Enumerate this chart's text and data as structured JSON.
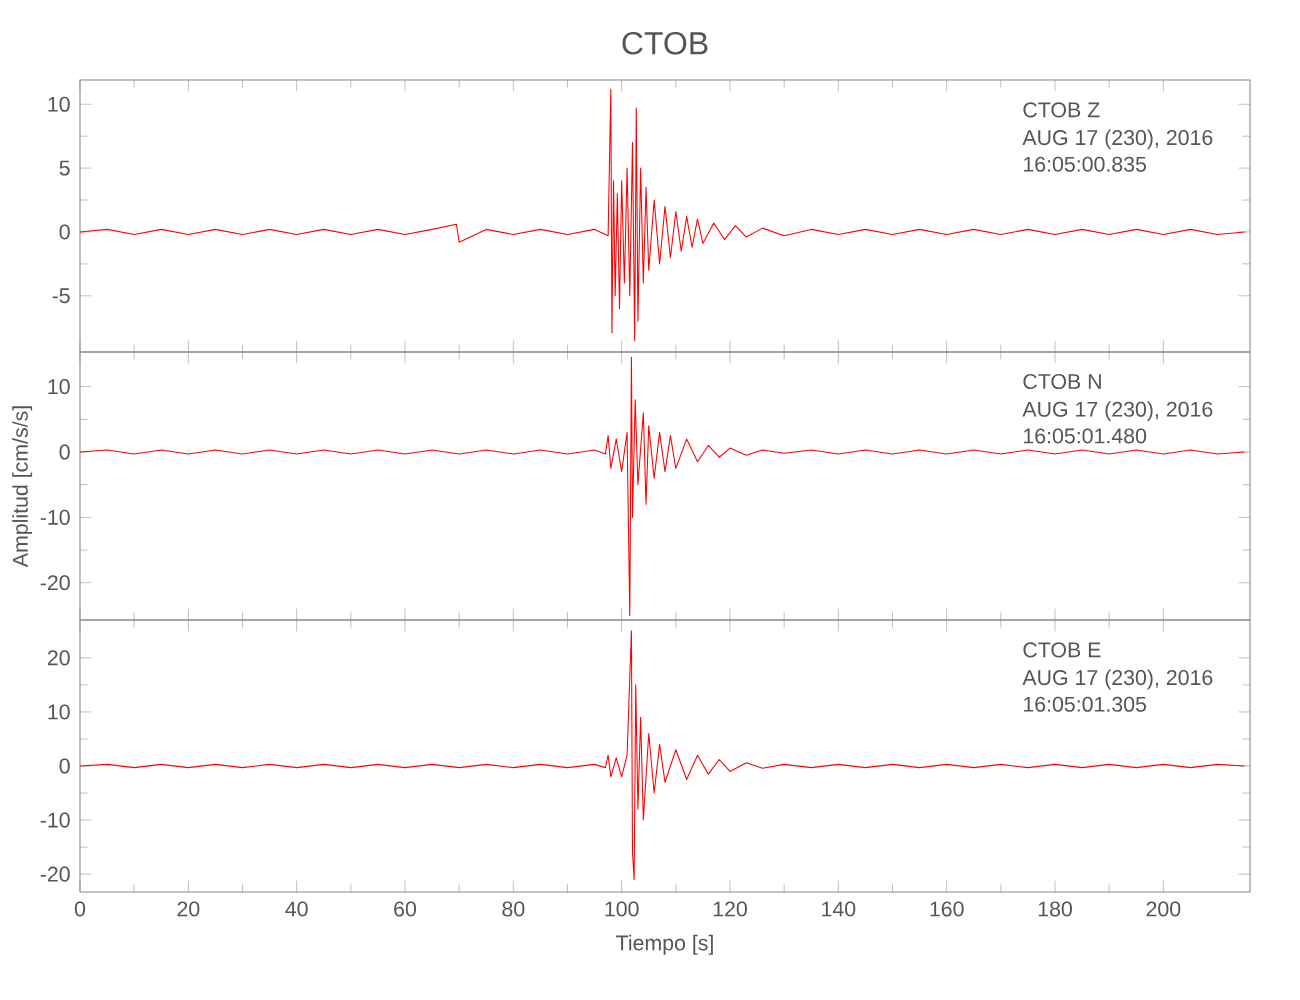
{
  "chart_data": [
    {
      "type": "line",
      "title": "CTOB",
      "color": "#ff0000",
      "xlim": [
        0,
        216
      ],
      "xticks": [
        0,
        20,
        40,
        60,
        80,
        100,
        120,
        140,
        160,
        180,
        200
      ],
      "ylim": [
        -9.4,
        11.9
      ],
      "yticks": [
        -5,
        0,
        5,
        10
      ],
      "tick_labels": "y",
      "annotations": [
        "CTOB   Z",
        "AUG 17 (230), 2016",
        "16:05:00.835"
      ],
      "x": [
        0,
        5,
        10,
        15,
        20,
        25,
        30,
        35,
        40,
        45,
        50,
        55,
        60,
        65,
        69.5,
        70,
        75,
        80,
        85,
        90,
        95,
        97.5,
        98,
        98.2,
        98.5,
        98.8,
        99.2,
        99.6,
        100,
        100.5,
        101,
        101.5,
        102,
        102.4,
        102.7,
        103,
        103.5,
        104,
        104.5,
        105,
        106,
        107,
        108,
        109,
        110,
        111,
        112,
        113,
        114,
        115,
        117,
        119,
        121,
        123,
        126,
        130,
        135,
        140,
        145,
        150,
        155,
        160,
        165,
        170,
        175,
        180,
        185,
        190,
        195,
        200,
        205,
        210,
        215
      ],
      "values": [
        0,
        0.2,
        -0.2,
        0.2,
        -0.2,
        0.2,
        -0.2,
        0.2,
        -0.2,
        0.2,
        -0.2,
        0.2,
        -0.2,
        0.2,
        0.6,
        -0.8,
        0.2,
        -0.2,
        0.2,
        -0.2,
        0.2,
        -0.3,
        11.2,
        -7.9,
        4,
        -5,
        3,
        -6,
        4,
        -4,
        5,
        -5,
        7,
        -8.5,
        9.7,
        -7,
        5,
        -4,
        3.5,
        -3,
        2.5,
        -2.5,
        2,
        -2,
        1.6,
        -1.5,
        1.2,
        -1.2,
        1,
        -0.9,
        0.7,
        -0.6,
        0.5,
        -0.4,
        0.3,
        -0.3,
        0.2,
        -0.2,
        0.2,
        -0.2,
        0.2,
        -0.2,
        0.2,
        -0.2,
        0.2,
        -0.2,
        0.2,
        -0.2,
        0.2,
        -0.2,
        0.2,
        -0.2,
        0
      ]
    },
    {
      "type": "line",
      "ylabel": "Amplitud [cm/s/s]",
      "color": "#ff0000",
      "xlim": [
        0,
        216
      ],
      "xticks": [
        0,
        20,
        40,
        60,
        80,
        100,
        120,
        140,
        160,
        180,
        200
      ],
      "ylim": [
        -25.7,
        15.3
      ],
      "yticks": [
        -20,
        -10,
        0,
        10
      ],
      "tick_labels": "y",
      "annotations": [
        "CTOB   N",
        "AUG 17 (230), 2016",
        "16:05:01.480"
      ],
      "x": [
        0,
        5,
        10,
        15,
        20,
        25,
        30,
        35,
        40,
        45,
        50,
        55,
        60,
        65,
        70,
        75,
        80,
        85,
        90,
        95,
        97,
        97.5,
        98,
        99,
        100,
        101,
        101.5,
        101.8,
        102,
        102.5,
        103,
        104,
        104.5,
        105,
        106,
        107,
        108,
        109,
        110,
        112,
        114,
        116,
        118,
        120,
        123,
        126,
        130,
        135,
        140,
        145,
        150,
        155,
        160,
        165,
        170,
        175,
        180,
        185,
        190,
        195,
        200,
        205,
        210,
        215
      ],
      "values": [
        0,
        0.3,
        -0.3,
        0.3,
        -0.3,
        0.3,
        -0.3,
        0.3,
        -0.3,
        0.3,
        -0.3,
        0.3,
        -0.3,
        0.3,
        -0.3,
        0.3,
        -0.3,
        0.3,
        -0.3,
        0.3,
        -0.3,
        2.5,
        -2.5,
        2,
        -3,
        3,
        -25,
        14.5,
        -10,
        8,
        -5,
        6,
        -8,
        4,
        -4,
        3,
        -3,
        2.5,
        -2.5,
        2,
        -1.5,
        1,
        -0.8,
        0.6,
        -0.5,
        0.3,
        -0.2,
        0.3,
        -0.3,
        0.3,
        -0.3,
        0.3,
        -0.3,
        0.3,
        -0.3,
        0.3,
        -0.3,
        0.3,
        -0.3,
        0.3,
        -0.3,
        0.3,
        -0.3,
        0
      ]
    },
    {
      "type": "line",
      "xlabel": "Tiempo [s]",
      "color": "#ff0000",
      "xlim": [
        0,
        216
      ],
      "xticks": [
        0,
        20,
        40,
        60,
        80,
        100,
        120,
        140,
        160,
        180,
        200
      ],
      "ylim": [
        -23.3,
        27
      ],
      "yticks": [
        -20,
        -10,
        0,
        10,
        20
      ],
      "annotations": [
        "CTOB   E",
        "AUG 17 (230), 2016",
        "16:05:01.305"
      ],
      "x": [
        0,
        5,
        10,
        15,
        20,
        25,
        30,
        35,
        40,
        45,
        50,
        55,
        60,
        65,
        70,
        75,
        80,
        85,
        90,
        95,
        97,
        97.5,
        98,
        99,
        100,
        101,
        101.8,
        102,
        102.3,
        102.6,
        103,
        103.5,
        104,
        105,
        106,
        107,
        108,
        110,
        112,
        114,
        116,
        118,
        120,
        123,
        126,
        130,
        135,
        140,
        145,
        150,
        155,
        160,
        165,
        170,
        175,
        180,
        185,
        190,
        195,
        200,
        205,
        210,
        215
      ],
      "values": [
        0,
        0.3,
        -0.3,
        0.3,
        -0.3,
        0.3,
        -0.3,
        0.3,
        -0.3,
        0.3,
        -0.3,
        0.3,
        -0.3,
        0.3,
        -0.3,
        0.3,
        -0.3,
        0.3,
        -0.3,
        0.3,
        -0.3,
        2,
        -2,
        1.5,
        -2,
        2,
        25,
        -16,
        -21,
        15,
        -8,
        9,
        -10,
        6,
        -5,
        4,
        -3,
        3,
        -2.5,
        2,
        -1.5,
        1.2,
        -1,
        0.6,
        -0.4,
        0.3,
        -0.3,
        0.3,
        -0.3,
        0.3,
        -0.3,
        0.3,
        -0.3,
        0.3,
        -0.3,
        0.3,
        -0.3,
        0.3,
        -0.3,
        0.3,
        -0.3,
        0.3,
        0
      ]
    }
  ]
}
